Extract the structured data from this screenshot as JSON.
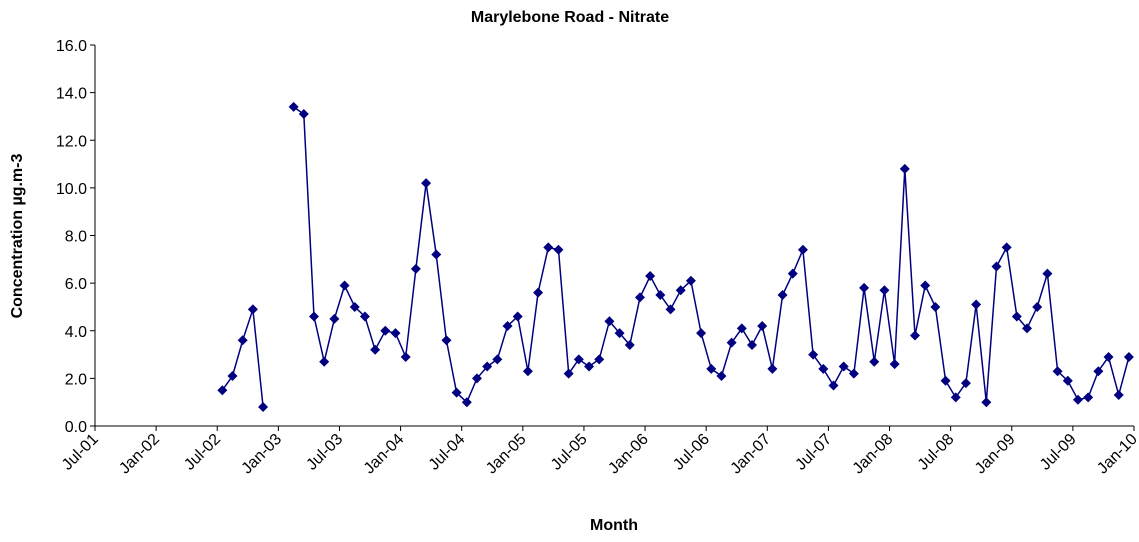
{
  "chart_data": {
    "type": "line",
    "title": "Marylebone Road - Nitrate",
    "x_label": "Month",
    "y_label": "Concentration  µg.m-3",
    "categories": [
      "Jul-01",
      null,
      null,
      null,
      null,
      null,
      "Jan-02",
      null,
      null,
      null,
      null,
      null,
      "Jul-02",
      null,
      null,
      null,
      null,
      null,
      "Jan-03",
      null,
      null,
      null,
      null,
      null,
      "Jul-03",
      null,
      null,
      null,
      null,
      null,
      "Jan-04",
      null,
      null,
      null,
      null,
      null,
      "Jul-04",
      null,
      null,
      null,
      null,
      null,
      "Jan-05",
      null,
      null,
      null,
      null,
      null,
      "Jul-05",
      null,
      null,
      null,
      null,
      null,
      "Jan-06",
      null,
      null,
      null,
      null,
      null,
      "Jul-06",
      null,
      null,
      null,
      null,
      null,
      "Jan-07",
      null,
      null,
      null,
      null,
      null,
      "Jul-07",
      null,
      null,
      null,
      null,
      null,
      "Jan-08",
      null,
      null,
      null,
      null,
      null,
      "Jul-08",
      null,
      null,
      null,
      null,
      null,
      "Jan-09",
      null,
      null,
      null,
      null,
      null,
      "Jul-09",
      null,
      null,
      null,
      null,
      null,
      "Jan-10"
    ],
    "series": [
      {
        "name": "Nitrate",
        "color": "#000080",
        "values": [
          null,
          null,
          null,
          null,
          null,
          null,
          null,
          null,
          null,
          null,
          null,
          null,
          1.5,
          2.1,
          3.6,
          4.9,
          0.8,
          null,
          null,
          13.4,
          13.1,
          4.6,
          2.7,
          4.5,
          5.9,
          5.0,
          4.6,
          3.2,
          4.0,
          3.9,
          2.9,
          6.6,
          10.2,
          7.2,
          3.6,
          1.4,
          1.0,
          2.0,
          2.5,
          2.8,
          4.2,
          4.6,
          2.3,
          5.6,
          7.5,
          7.4,
          2.2,
          2.8,
          2.5,
          2.8,
          4.4,
          3.9,
          3.4,
          5.4,
          6.3,
          5.5,
          4.9,
          5.7,
          6.1,
          3.9,
          2.4,
          2.1,
          3.5,
          4.1,
          3.4,
          4.2,
          2.4,
          5.5,
          6.4,
          7.4,
          3.0,
          2.4,
          1.7,
          2.5,
          2.2,
          5.8,
          2.7,
          5.7,
          2.6,
          10.8,
          3.8,
          5.9,
          5.0,
          1.9,
          1.2,
          1.8,
          5.1,
          1.0,
          6.7,
          7.5,
          4.6,
          4.1,
          5.0,
          6.4,
          2.3,
          1.9,
          1.1,
          1.2,
          2.3,
          2.9,
          1.3,
          2.9,
          null
        ]
      }
    ],
    "ylim": [
      0,
      16
    ],
    "yticks": [
      {
        "value": 0,
        "label": "0.0"
      },
      {
        "value": 2,
        "label": "2.0"
      },
      {
        "value": 4,
        "label": "4.0"
      },
      {
        "value": 6,
        "label": "6.0"
      },
      {
        "value": 8,
        "label": "8.0"
      },
      {
        "value": 10,
        "label": "10.0"
      },
      {
        "value": 12,
        "label": "12.0"
      },
      {
        "value": 14,
        "label": "14.0"
      },
      {
        "value": 16,
        "label": "16.0"
      }
    ],
    "grid": false
  }
}
